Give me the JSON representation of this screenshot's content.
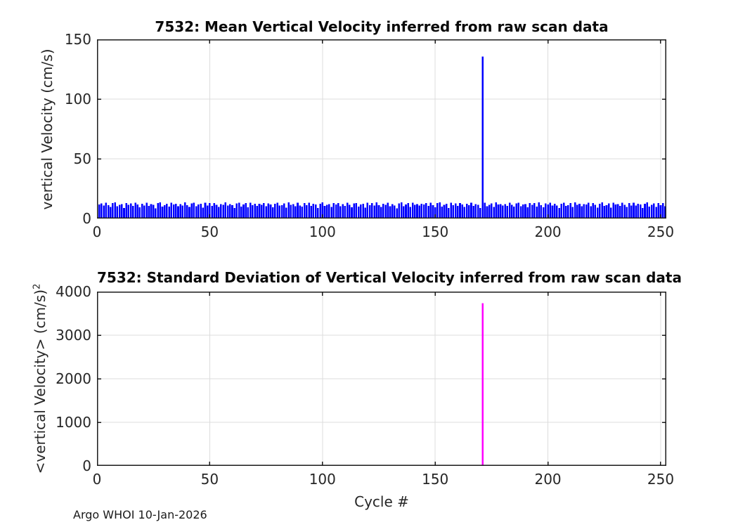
{
  "style": {
    "background": "#ffffff",
    "axis_color": "#1a1a1a",
    "grid_color": "#dcdcdc",
    "tick_label_color": "#262626",
    "mean_bar_color": "#0000ff",
    "std_bar_color": "#ff00ff"
  },
  "figure": {
    "xlabel": "Cycle #",
    "footer": "Argo WHOI 10-Jan-2026"
  },
  "chart_data": [
    {
      "type": "bar",
      "title": "7532: Mean Vertical Velocity inferred from raw scan data",
      "ylabel": "vertical Velocity (cm/s)",
      "xlabel": "Cycle #",
      "bar_color": "#0000ff",
      "grid": true,
      "xlim": [
        0,
        252.5
      ],
      "ylim": [
        0,
        150
      ],
      "xticks": [
        0,
        50,
        100,
        150,
        200,
        250
      ],
      "yticks": [
        0,
        50,
        100,
        150
      ],
      "x_start": 1,
      "bar_width": 0.8,
      "spike_cycle": 171,
      "spike_value": 135.5,
      "values": [
        11.8,
        12.6,
        10.9,
        13.2,
        11.1,
        9.7,
        12.9,
        13.4,
        10.2,
        11.6,
        12.2,
        8.9,
        13.0,
        11.4,
        12.7,
        10.5,
        13.3,
        11.9,
        9.4,
        12.4,
        11.0,
        13.1,
        10.7,
        12.0,
        11.5,
        8.6,
        12.8,
        13.5,
        10.1,
        11.3,
        12.3,
        9.9,
        13.2,
        11.7,
        12.5,
        10.4,
        12.1,
        10.8,
        13.4,
        11.2,
        9.6,
        12.7,
        13.1,
        10.3,
        11.9,
        12.4,
        9.1,
        13.3,
        11.0,
        12.8,
        10.6,
        13.0,
        11.6,
        9.8,
        12.2,
        11.4,
        13.5,
        10.9,
        12.0,
        11.1,
        8.8,
        12.6,
        13.2,
        10.0,
        11.7,
        12.9,
        9.5,
        13.1,
        11.3,
        12.3,
        10.7,
        12.5,
        11.5,
        13.0,
        10.4,
        12.7,
        11.8,
        9.3,
        12.5,
        13.3,
        10.8,
        11.2,
        12.6,
        9.0,
        13.4,
        11.6,
        12.1,
        10.2,
        13.2,
        11.0,
        9.9,
        12.8,
        11.3,
        13.1,
        10.5,
        12.3,
        11.9,
        8.7,
        12.4,
        13.5,
        10.6,
        11.4,
        12.0,
        9.6,
        13.0,
        11.7,
        12.9,
        10.3,
        12.2,
        10.7,
        13.3,
        11.5,
        9.5,
        12.6,
        13.0,
        10.1,
        11.8,
        12.5,
        9.2,
        13.1,
        11.2,
        12.9,
        10.9,
        13.4,
        11.1,
        9.7,
        12.3,
        11.6,
        13.2,
        10.4,
        12.1,
        11.0,
        8.5,
        12.7,
        13.5,
        10.2,
        11.9,
        12.8,
        9.8,
        13.3,
        11.4,
        12.0,
        10.8,
        12.4,
        11.7,
        12.9,
        10.5,
        13.1,
        11.3,
        9.4,
        12.8,
        13.4,
        10.0,
        11.5,
        12.3,
        8.8,
        13.2,
        11.1,
        12.6,
        10.7,
        13.0,
        11.8,
        9.6,
        12.5,
        11.2,
        13.3,
        10.6,
        12.2,
        11.4,
        8.9,
        135.5,
        13.1,
        10.3,
        11.6,
        12.7,
        9.7,
        13.4,
        11.9,
        12.1,
        10.9,
        12.0,
        10.6,
        13.2,
        11.4,
        9.9,
        12.7,
        13.3,
        10.4,
        11.8,
        12.2,
        9.3,
        13.0,
        11.5,
        12.8,
        10.1,
        13.4,
        11.2,
        9.5,
        12.6,
        11.7,
        13.1,
        10.8,
        12.3,
        11.0,
        8.7,
        12.5,
        13.2,
        10.5,
        11.3,
        12.9,
        9.8,
        13.5,
        11.6,
        12.4,
        10.2,
        12.1,
        11.9,
        13.1,
        10.3,
        12.8,
        11.6,
        9.2,
        12.4,
        13.5,
        10.7,
        11.1,
        12.7,
        9.0,
        13.3,
        11.8,
        12.0,
        10.6,
        13.1,
        11.4,
        9.8,
        12.9,
        11.0,
        13.2,
        10.9,
        12.5,
        11.7,
        8.8,
        12.3,
        13.4,
        10.0,
        11.5,
        12.6,
        9.6,
        13.0,
        11.2,
        12.8,
        10.4
      ]
    },
    {
      "type": "bar",
      "title": "7532: Standard Deviation of Vertical Velocity inferred from raw scan data",
      "ylabel": "<vertical Velocity> (cm/s)",
      "ylabel_superscript": "2",
      "xlabel": "Cycle #",
      "bar_color": "#ff00ff",
      "grid": true,
      "xlim": [
        0,
        252.5
      ],
      "ylim": [
        0,
        4000
      ],
      "xticks": [
        0,
        50,
        100,
        150,
        200,
        250
      ],
      "yticks": [
        0,
        1000,
        2000,
        3000,
        4000
      ],
      "bar_width": 0.8,
      "all_other_cycles_value": 0,
      "x": [
        171
      ],
      "values": [
        3730
      ]
    }
  ]
}
